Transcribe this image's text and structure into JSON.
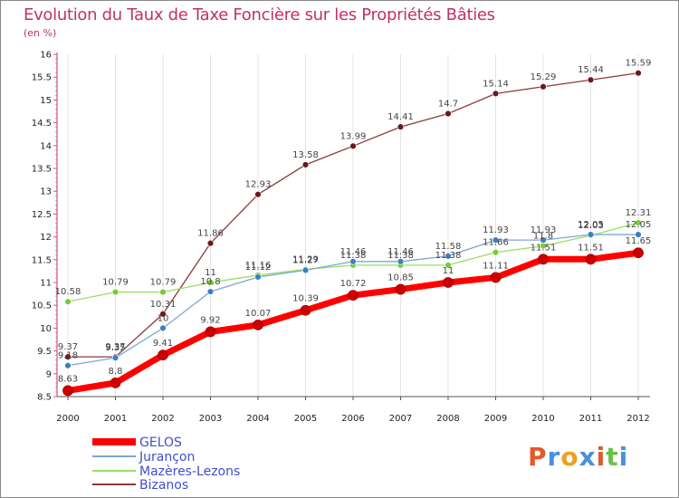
{
  "chart_data": {
    "type": "line",
    "title": "Evolution du Taux de Taxe Foncière sur les Propriétés Bâties",
    "ylabel": "(en %)",
    "xlabel": "",
    "ylim": [
      8.5,
      16
    ],
    "yticks": [
      8.5,
      9,
      9.5,
      10,
      10.5,
      11,
      11.5,
      12,
      12.5,
      13,
      13.5,
      14,
      14.5,
      15,
      15.5,
      16
    ],
    "categories": [
      "2000",
      "2001",
      "2002",
      "2003",
      "2004",
      "2005",
      "2006",
      "2007",
      "2008",
      "2009",
      "2010",
      "2011",
      "2012"
    ],
    "series": [
      {
        "name": "GELOS",
        "color": "#ff0000",
        "point_color": "#cc0000",
        "width": 7,
        "values": [
          8.63,
          8.8,
          9.41,
          9.92,
          10.07,
          10.39,
          10.72,
          10.85,
          11,
          11.11,
          11.51,
          11.51,
          11.65
        ]
      },
      {
        "name": "Jurançon",
        "color": "#7ba7d6",
        "point_color": "#3a7fc4",
        "width": 1.3,
        "values": [
          9.18,
          9.35,
          10,
          10.8,
          11.12,
          11.27,
          11.46,
          11.46,
          11.58,
          11.93,
          11.93,
          12.05,
          12.05
        ]
      },
      {
        "name": "Mazères-Lezons",
        "color": "#99dd66",
        "point_color": "#77cc33",
        "width": 1.3,
        "values": [
          10.58,
          10.79,
          10.79,
          11,
          11.16,
          11.29,
          11.38,
          11.38,
          11.38,
          11.66,
          11.8,
          12.03,
          12.31
        ]
      },
      {
        "name": "Bizanos",
        "color": "#8b3a3a",
        "point_color": "#6b1a1a",
        "width": 1.3,
        "values": [
          9.37,
          9.37,
          10.31,
          11.86,
          12.93,
          13.58,
          13.99,
          14.41,
          14.7,
          15.14,
          15.29,
          15.44,
          15.59
        ]
      }
    ],
    "data_labels": [
      {
        "series": 0,
        "texts": [
          "8.63",
          "8.8",
          "9.41",
          "9.92",
          "10.07",
          "10.39",
          "10.72",
          "10.85",
          "11",
          "11.11",
          "11.51",
          "11.51",
          "11.65"
        ]
      },
      {
        "series": 1,
        "texts": [
          "9.18",
          "9.35",
          "10",
          "10.8",
          "11.12",
          "11.27",
          "11.46",
          "11.46",
          "11.58",
          "11.93",
          "11.93",
          "12.05",
          "12.05"
        ]
      },
      {
        "series": 2,
        "texts": [
          "10.58",
          "10.79",
          "10.79",
          "11",
          "11.16",
          "11.29",
          "11.38",
          "11.38",
          "11.38",
          "11.66",
          "11.8",
          "12.03",
          "12.31"
        ]
      },
      {
        "series": 3,
        "texts": [
          "9.37",
          "9.37",
          "10.31",
          "11.86",
          "12.93",
          "13.58",
          "13.99",
          "14.41",
          "14.7",
          "15.14",
          "15.29",
          "15.44",
          "15.59"
        ]
      }
    ],
    "legend": [
      "GELOS",
      "Jurançon",
      "Mazères-Lezons",
      "Bizanos"
    ],
    "legend_position": "bottom-left"
  },
  "logo": {
    "letters": [
      "P",
      "r",
      "o",
      "x",
      "i",
      "t",
      "i"
    ],
    "colors": [
      "#e05a2b",
      "#4a90d9",
      "#f0a020",
      "#4a90d9",
      "#e05a2b",
      "#6cc04a",
      "#4a90d9"
    ]
  }
}
